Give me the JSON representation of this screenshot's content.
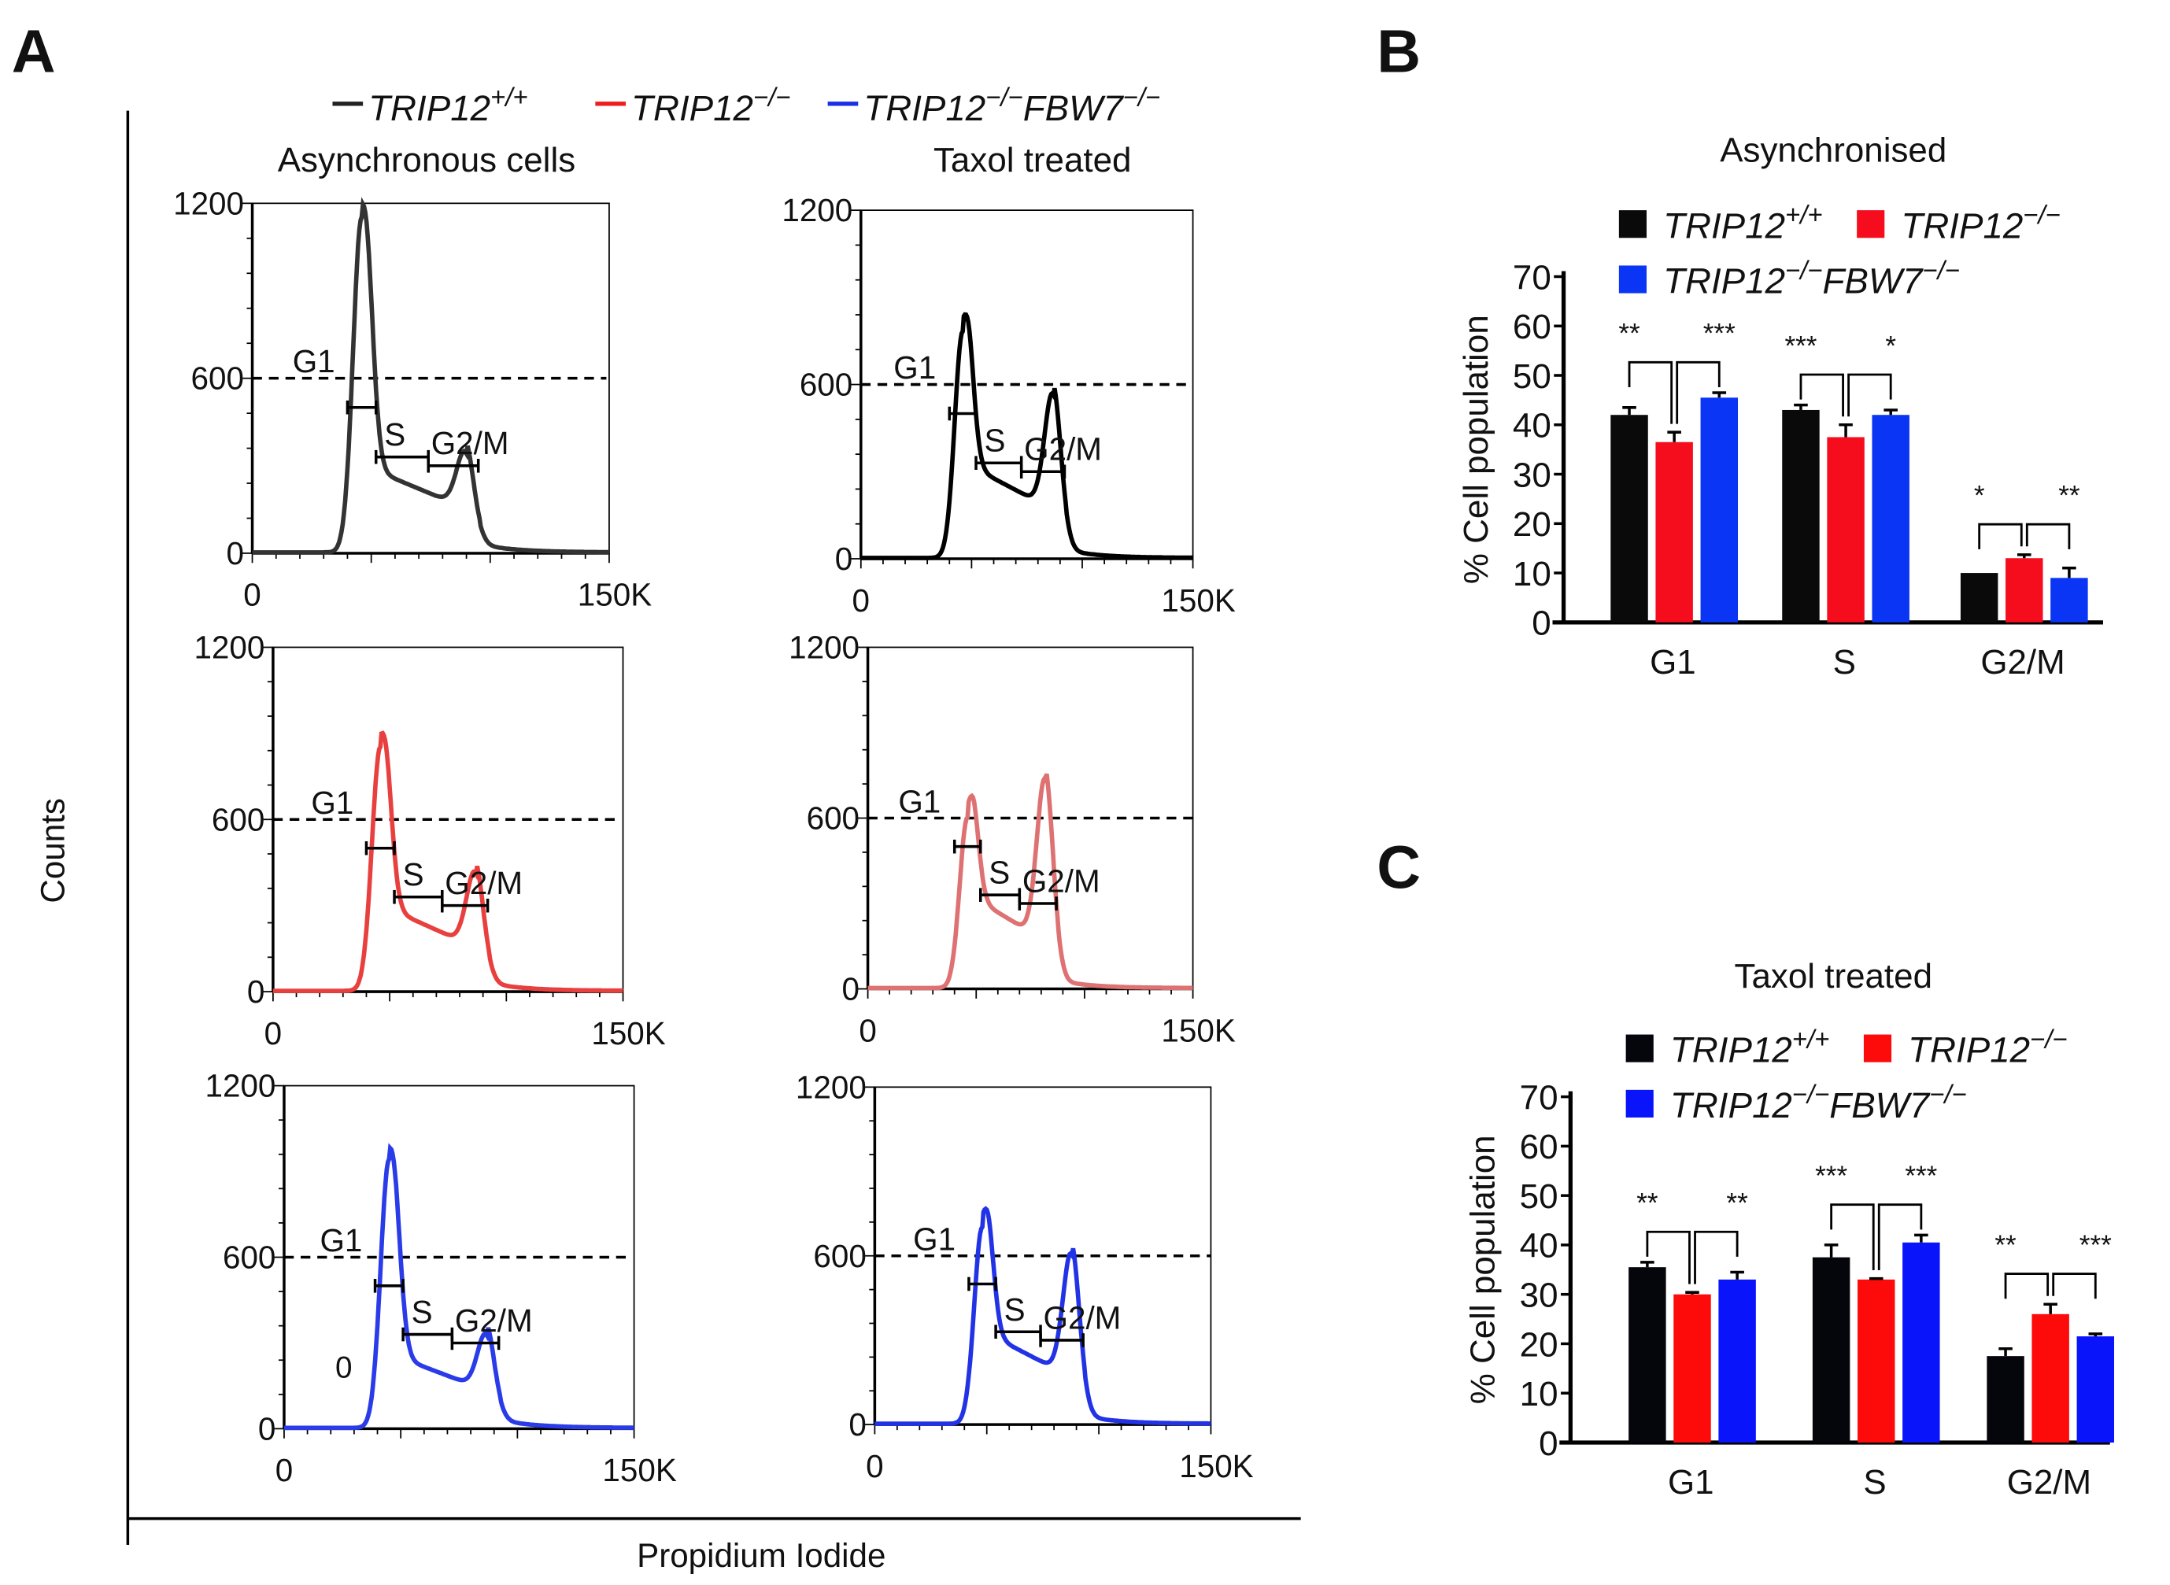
{
  "panel_labels": {
    "a": "A",
    "b": "B",
    "c": "C"
  },
  "panel_a": {
    "legend": [
      {
        "gene": "TRIP12",
        "sup": "+/+",
        "gene2": "",
        "sup2": "",
        "color": "#222222"
      },
      {
        "gene": "TRIP12",
        "sup": "−/−",
        "gene2": "",
        "sup2": "",
        "color": "#ee1c1c"
      },
      {
        "gene": "TRIP12",
        "sup": "−/−",
        "gene2": "FBW7",
        "sup2": "−/−",
        "color": "#1a2ee8"
      }
    ],
    "column_titles": [
      "Asynchronous cells",
      "Taxol treated"
    ],
    "y_axis_label": "Counts",
    "x_axis_label": "Propidium Iodide",
    "stray_label": "0"
  },
  "chart_data": [
    {
      "type": "histogram",
      "panel": "A",
      "description_axes": {
        "x_ticks": [
          "0",
          "150K"
        ],
        "y_ticks": [
          "0",
          "600",
          "1200"
        ],
        "xlim_k": [
          0,
          150
        ],
        "ylim": [
          0,
          1200
        ],
        "threshold_line": 600
      },
      "gate_labels": [
        "G1",
        "S",
        "G2/M"
      ],
      "panels": [
        {
          "condition": "Asynchronous cells",
          "genotype": "TRIP12+/+",
          "color": "#333333",
          "g1_peak_k": 46,
          "g1_height": 1150,
          "g2_peak_k": 90,
          "g2_height": 220,
          "s_level": 300
        },
        {
          "condition": "Taxol treated",
          "genotype": "TRIP12+/+",
          "color": "#000000",
          "g1_peak_k": 46,
          "g1_height": 780,
          "g2_peak_k": 87,
          "g2_height": 430,
          "s_level": 330
        },
        {
          "condition": "Asynchronous cells",
          "genotype": "TRIP12-/-",
          "color": "#e8403f",
          "g1_peak_k": 46,
          "g1_height": 850,
          "g2_peak_k": 87,
          "g2_height": 290,
          "s_level": 300
        },
        {
          "condition": "Taxol treated",
          "genotype": "TRIP12-/-",
          "color": "#de7272",
          "g1_peak_k": 46,
          "g1_height": 600,
          "g2_peak_k": 82,
          "g2_height": 600,
          "s_level": 330
        },
        {
          "condition": "Asynchronous cells",
          "genotype": "TRIP12-/- FBW7-/-",
          "color": "#2a3be8",
          "g1_peak_k": 45,
          "g1_height": 940,
          "g2_peak_k": 87,
          "g2_height": 220,
          "s_level": 260
        },
        {
          "condition": "Taxol treated",
          "genotype": "TRIP12-/- FBW7-/-",
          "color": "#2233e6",
          "g1_peak_k": 48,
          "g1_height": 700,
          "g2_peak_k": 88,
          "g2_height": 470,
          "s_level": 330
        }
      ]
    },
    {
      "type": "bar",
      "panel": "B",
      "title": "Asynchronised",
      "ylabel": "% Cell population",
      "ylim": [
        0,
        70
      ],
      "y_ticks": [
        "0",
        "10",
        "20",
        "30",
        "40",
        "50",
        "60",
        "70"
      ],
      "categories": [
        "G1",
        "S",
        "G2/M"
      ],
      "series": [
        {
          "name": "TRIP12+/+",
          "color": "#0a0a0a",
          "values": [
            42,
            43,
            10
          ],
          "errors": [
            1.5,
            1,
            0
          ]
        },
        {
          "name": "TRIP12-/-",
          "color": "#f50d1d",
          "values": [
            36.5,
            37.5,
            13
          ],
          "errors": [
            2,
            2.5,
            0.7
          ]
        },
        {
          "name": "TRIP12-/- FBW7-/-",
          "color": "#0a35f5",
          "values": [
            45.5,
            42,
            9
          ],
          "errors": [
            1,
            1,
            2
          ]
        }
      ],
      "significance": [
        [
          "**",
          "***"
        ],
        [
          "***",
          "*"
        ],
        [
          "*",
          "**"
        ]
      ]
    },
    {
      "type": "bar",
      "panel": "C",
      "title": "Taxol treated",
      "ylabel": "% Cell population",
      "ylim": [
        0,
        70
      ],
      "y_ticks": [
        "0",
        "10",
        "20",
        "30",
        "40",
        "50",
        "60",
        "70"
      ],
      "categories": [
        "G1",
        "S",
        "G2/M"
      ],
      "series": [
        {
          "name": "TRIP12+/+",
          "color": "#05060c",
          "values": [
            35.5,
            37.5,
            17.5
          ],
          "errors": [
            1,
            2.5,
            1.5
          ]
        },
        {
          "name": "TRIP12-/-",
          "color": "#fd0a0a",
          "values": [
            30,
            33,
            26
          ],
          "errors": [
            0.4,
            0.2,
            2
          ]
        },
        {
          "name": "TRIP12-/- FBW7-/-",
          "color": "#0a14fa",
          "values": [
            33,
            40.5,
            21.5
          ],
          "errors": [
            1.5,
            1.5,
            0.5
          ]
        }
      ],
      "significance": [
        [
          "**",
          "**"
        ],
        [
          "***",
          "***"
        ],
        [
          "**",
          "***"
        ]
      ]
    }
  ]
}
